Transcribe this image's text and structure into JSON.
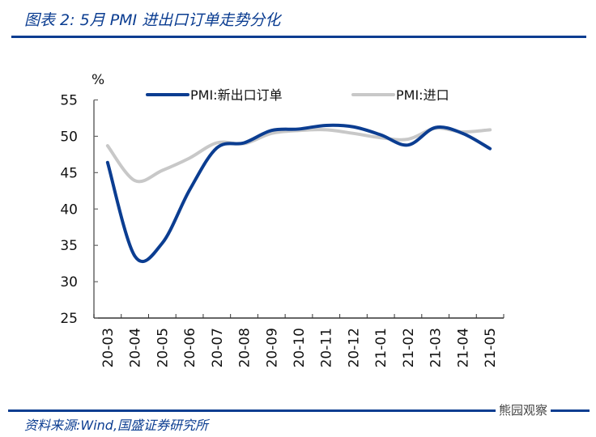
{
  "header": {
    "title": "图表 2:  5月 PMI 进出口订单走势分化"
  },
  "footer": {
    "source": "资料来源:Wind,国盛证券研究所",
    "watermark": "熊园观察"
  },
  "colors": {
    "export": "#0b3d91",
    "import": "#c8c8c8",
    "accent": "#0b3d91"
  },
  "chart_data": {
    "type": "line",
    "title": "5月 PMI 进出口订单走势分化",
    "ylabel": "%",
    "xlabel": "",
    "ylim": [
      25,
      55
    ],
    "yticks": [
      25,
      30,
      35,
      40,
      45,
      50,
      55
    ],
    "grid": false,
    "legend_position": "top",
    "categories": [
      "20-03",
      "20-04",
      "20-05",
      "20-06",
      "20-07",
      "20-08",
      "20-09",
      "20-10",
      "20-11",
      "20-12",
      "21-01",
      "21-02",
      "21-03",
      "21-04",
      "21-05"
    ],
    "series": [
      {
        "name": "PMI:新出口订单",
        "color": "#0b3d91",
        "values": [
          46.4,
          33.5,
          35.3,
          42.6,
          48.4,
          49.1,
          50.8,
          51.0,
          51.5,
          51.3,
          50.2,
          48.8,
          51.2,
          50.4,
          48.3
        ]
      },
      {
        "name": "PMI:进口",
        "color": "#c8c8c8",
        "values": [
          48.7,
          43.9,
          45.3,
          47.0,
          49.1,
          49.0,
          50.4,
          50.8,
          50.9,
          50.4,
          49.8,
          49.6,
          51.1,
          50.6,
          50.9
        ]
      }
    ]
  }
}
